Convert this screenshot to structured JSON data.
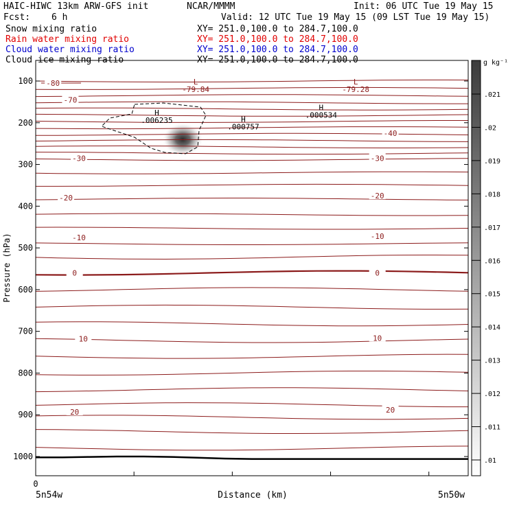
{
  "header": {
    "model": "HAIC-HIWC 13km ARW-GFS init",
    "org": "NCAR/MMMM",
    "init": "Init: 06 UTC Tue 19 May 15",
    "fcst_label": "Fcst:",
    "fcst_value": "6 h",
    "valid": "Valid: 12 UTC Tue 19 May 15 (09 LST Tue 19 May 15)",
    "colors": {
      "snow": "#000000",
      "rain": "#e00000",
      "cloud_water": "#0000cc",
      "cloud_ice": "#000000"
    }
  },
  "fields": [
    {
      "name": "Snow mixing ratio",
      "xy": "XY= 251.0,100.0 to 284.7,100.0",
      "color": "#000000"
    },
    {
      "name": "Rain water mixing ratio",
      "xy": "XY= 251.0,100.0 to 284.7,100.0",
      "color": "#e00000"
    },
    {
      "name": "Cloud water mixing ratio",
      "xy": "XY= 251.0,100.0 to 284.7,100.0",
      "color": "#0000cc"
    },
    {
      "name": "Cloud ice mixing ratio",
      "xy": "XY= 251.0,100.0 to 284.7,100.0",
      "color": "#000000"
    }
  ],
  "chart_data": {
    "type": "cross-section",
    "ylabel": "Pressure (hPa)",
    "xlabel": "Distance (km)",
    "x_tick_label": "0",
    "x_left_label": "5n54w",
    "x_right_label": "5n50w",
    "yticks": [
      100,
      200,
      300,
      400,
      500,
      600,
      700,
      800,
      900,
      1000
    ],
    "ylim": [
      1050,
      50
    ],
    "xlim": [
      0,
      100
    ],
    "contour_color": "#8b1a1a",
    "isotherm_levels_lines": [
      100,
      118,
      135,
      152,
      167,
      182,
      197,
      212,
      228,
      243,
      258,
      273,
      288,
      320,
      350,
      383,
      420,
      453,
      490,
      522,
      560,
      600,
      642,
      682,
      722,
      760,
      800,
      840,
      876,
      906,
      940,
      980
    ],
    "isotherm_labels": [
      {
        "text": "-80",
        "x": 4,
        "p": 105
      },
      {
        "text": "-70",
        "x": 8,
        "p": 145
      },
      {
        "text": "-40",
        "x": 82,
        "p": 225
      },
      {
        "text": "-30",
        "x": 10,
        "p": 285
      },
      {
        "text": "-30",
        "x": 79,
        "p": 285
      },
      {
        "text": "-20",
        "x": 7,
        "p": 380
      },
      {
        "text": "-20",
        "x": 79,
        "p": 375
      },
      {
        "text": "-10",
        "x": 10,
        "p": 475
      },
      {
        "text": "-10",
        "x": 79,
        "p": 472
      },
      {
        "text": "0",
        "x": 9,
        "p": 560
      },
      {
        "text": "0",
        "x": 79,
        "p": 560
      },
      {
        "text": "10",
        "x": 11,
        "p": 718
      },
      {
        "text": "10",
        "x": 79,
        "p": 716
      },
      {
        "text": "20",
        "x": 9,
        "p": 893
      },
      {
        "text": "20",
        "x": 82,
        "p": 888
      }
    ],
    "extrema": [
      {
        "kind": "L",
        "value": "-79.84",
        "x": 37,
        "p": 108,
        "color": "#8b1a1a"
      },
      {
        "kind": "L",
        "value": "-79.28",
        "x": 74,
        "p": 108,
        "color": "#8b1a1a"
      },
      {
        "kind": "H",
        "value": ".006235",
        "x": 28,
        "p": 182,
        "color": "#000000"
      },
      {
        "kind": "H",
        "value": ".000757",
        "x": 48,
        "p": 198,
        "color": "#000000"
      },
      {
        "kind": "H",
        "value": ".000534",
        "x": 66,
        "p": 170,
        "color": "#000000"
      }
    ],
    "shading_max": {
      "x": 34,
      "p": 240,
      "value": 0.0215
    },
    "surface_pressure": [
      1002,
      1002,
      1001,
      1000,
      1000,
      1001,
      1003,
      1005,
      1006,
      1006,
      1006,
      1006,
      1006,
      1006,
      1006,
      1006,
      1006
    ],
    "colorbar": {
      "unit": "g kg⁻¹",
      "ticks": [
        "0.021",
        "0.02",
        "0.019",
        "0.018",
        "0.017",
        "0.016",
        "0.015",
        "0.014",
        "0.013",
        "0.012",
        "0.011",
        "0.01"
      ],
      "tick_labels": [
        ".021",
        ".02",
        ".019",
        ".018",
        ".017",
        ".016",
        ".015",
        ".014",
        ".013",
        ".012",
        ".011",
        ".01"
      ]
    }
  }
}
